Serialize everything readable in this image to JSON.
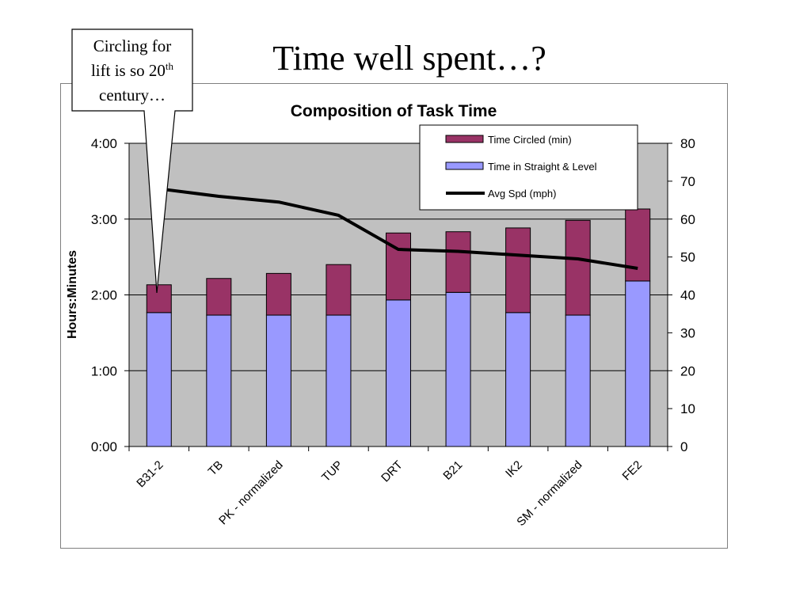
{
  "slide": {
    "title": "Time well spent…?",
    "callout": {
      "line1": "Circling for",
      "line2_pre": "lift is so 20",
      "line2_sup": "th",
      "line3": "century…"
    }
  },
  "chart_data": {
    "type": "bar",
    "stacked": true,
    "title": "Composition of Task Time",
    "ylabel": "Hours:Minutes",
    "y2label": "",
    "categories": [
      "B31-2",
      "TB",
      "PK - normalized",
      "TUP",
      "DRT",
      "B21",
      "IK2",
      "SM - normalized",
      "FE2"
    ],
    "y_ticks": [
      "0:00",
      "1:00",
      "2:00",
      "3:00",
      "4:00"
    ],
    "ylim": [
      0,
      240
    ],
    "y2_ticks": [
      "0",
      "10",
      "20",
      "30",
      "40",
      "50",
      "60",
      "70",
      "80"
    ],
    "y2lim": [
      0,
      80
    ],
    "series": [
      {
        "name": "Time in Straight & Level",
        "type": "bar",
        "color": "#9999ff",
        "values": [
          106,
          104,
          104,
          104,
          116,
          122,
          106,
          104,
          131
        ]
      },
      {
        "name": "Time Circled (min)",
        "type": "bar",
        "color": "#993366",
        "values": [
          22,
          29,
          33,
          40,
          53,
          48,
          67,
          75,
          57
        ]
      },
      {
        "name": "Avg Spd (mph)",
        "type": "line",
        "axis": "right",
        "color": "#000000",
        "values": [
          68,
          66,
          64.5,
          61,
          52,
          51.5,
          50.5,
          49.5,
          47
        ]
      }
    ],
    "legend": {
      "position": "top-right",
      "order": [
        "Time Circled (min)",
        "Time in Straight & Level",
        "Avg Spd (mph)"
      ]
    },
    "colors": {
      "plot_area": "#c0c0c0",
      "gridline": "#000000"
    },
    "grid": true
  }
}
